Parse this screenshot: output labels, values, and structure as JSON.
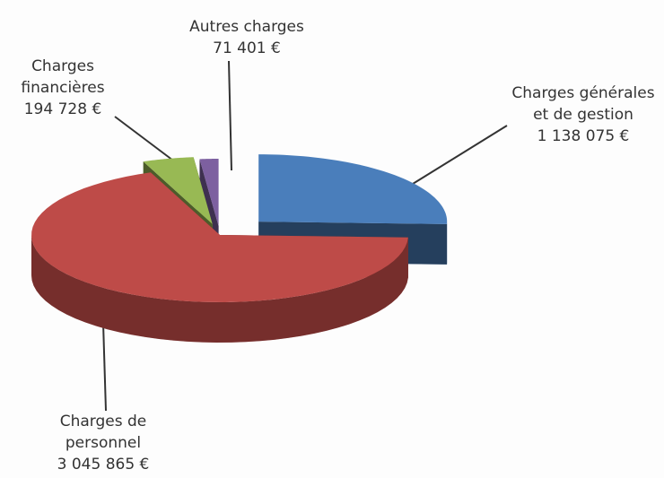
{
  "chart_data": {
    "type": "pie",
    "categories": [
      "Charges générales et de gestion",
      "Charges de personnel",
      "Charges financières",
      "Autres charges"
    ],
    "values": [
      1138075,
      3045865,
      194728,
      71401
    ],
    "value_labels": [
      "1 138 075 €",
      "3 045 865 €",
      "194 728 €",
      "71 401 €"
    ],
    "colors": [
      "#4a7ebb",
      "#be4b48",
      "#98b954",
      "#7d60a0"
    ]
  }
}
